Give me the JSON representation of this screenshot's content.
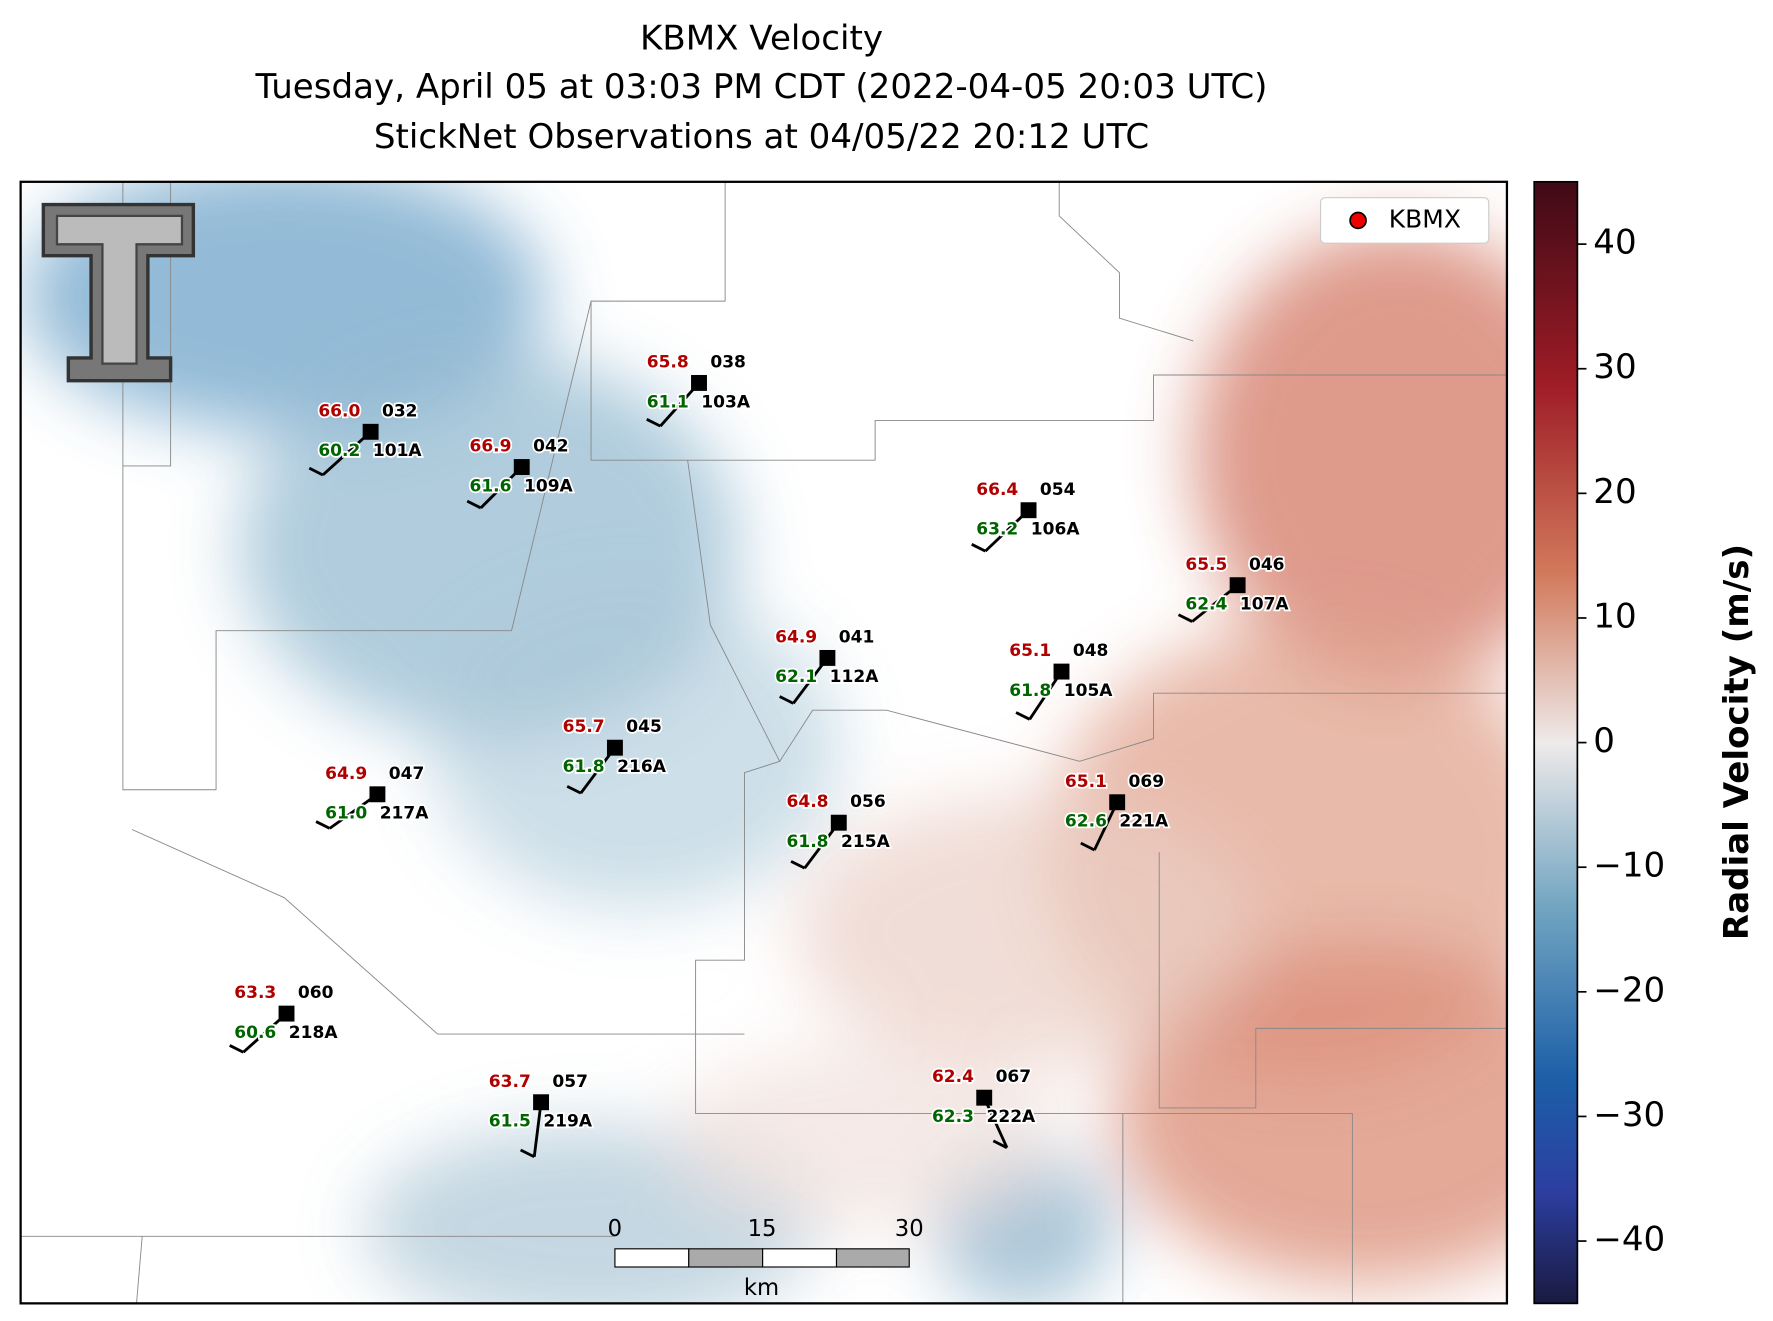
{
  "title": {
    "line1": "KBMX Velocity",
    "line2": "Tuesday, April 05 at 03:03 PM CDT (2022-04-05 20:03 UTC)",
    "line3": "StickNet Observations at 04/05/22 20:12 UTC"
  },
  "legend": {
    "label": "KBMX"
  },
  "stations": [
    {
      "temp": "66.0",
      "dew": "60.2",
      "code": "032",
      "id": "101A"
    },
    {
      "temp": "66.9",
      "dew": "61.6",
      "code": "042",
      "id": "109A"
    },
    {
      "temp": "65.8",
      "dew": "61.1",
      "code": "038",
      "id": "103A"
    },
    {
      "temp": "66.4",
      "dew": "63.2",
      "code": "054",
      "id": "106A"
    },
    {
      "temp": "65.5",
      "dew": "62.4",
      "code": "046",
      "id": "107A"
    },
    {
      "temp": "64.9",
      "dew": "62.1",
      "code": "041",
      "id": "112A"
    },
    {
      "temp": "65.1",
      "dew": "61.8",
      "code": "048",
      "id": "105A"
    },
    {
      "temp": "65.7",
      "dew": "61.8",
      "code": "045",
      "id": "216A"
    },
    {
      "temp": "64.9",
      "dew": "61.0",
      "code": "047",
      "id": "217A"
    },
    {
      "temp": "64.8",
      "dew": "61.8",
      "code": "056",
      "id": "215A"
    },
    {
      "temp": "65.1",
      "dew": "62.6",
      "code": "069",
      "id": "221A"
    },
    {
      "temp": "63.3",
      "dew": "60.6",
      "code": "060",
      "id": "218A"
    },
    {
      "temp": "63.7",
      "dew": "61.5",
      "code": "057",
      "id": "219A"
    },
    {
      "temp": "62.4",
      "dew": "62.3",
      "code": "067",
      "id": "222A"
    }
  ],
  "scale_bar": {
    "ticks": [
      0,
      15,
      30
    ],
    "unit": "km"
  },
  "colorbar": {
    "label": "Radial Velocity (m/s)",
    "ylim": [
      -45,
      45
    ],
    "yticks": [
      {
        "value": -40,
        "label": "−40"
      },
      {
        "value": -30,
        "label": "−30"
      },
      {
        "value": -20,
        "label": "−20"
      },
      {
        "value": -10,
        "label": "−10"
      },
      0,
      10,
      20,
      30,
      40
    ]
  }
}
